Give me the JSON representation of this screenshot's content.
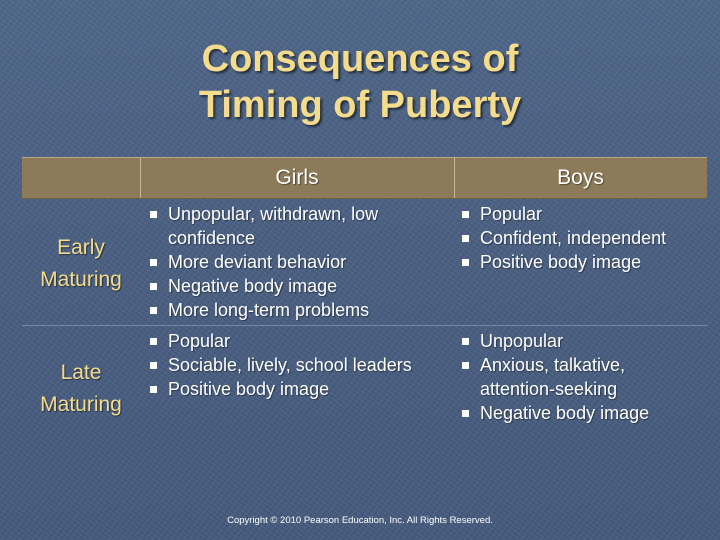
{
  "title": {
    "line1": "Consequences of",
    "line2": "Timing of Puberty"
  },
  "table": {
    "headers": {
      "girls": "Girls",
      "boys": "Boys"
    },
    "rows": [
      {
        "label_line1": "Early",
        "label_line2": "Maturing",
        "girls": [
          "Unpopular, withdrawn, low confidence",
          "More deviant behavior",
          "Negative body image",
          "More long-term problems"
        ],
        "boys": [
          "Popular",
          "Confident, independent",
          "Positive body image"
        ]
      },
      {
        "label_line1": "Late",
        "label_line2": "Maturing",
        "girls": [
          "Popular",
          "Sociable, lively, school leaders",
          "Positive body image"
        ],
        "boys": [
          "Unpopular",
          "Anxious, talkative, attention-seeking",
          "Negative body image"
        ]
      }
    ]
  },
  "footer": "Copyright © 2010 Pearson Education, Inc. All Rights Reserved."
}
